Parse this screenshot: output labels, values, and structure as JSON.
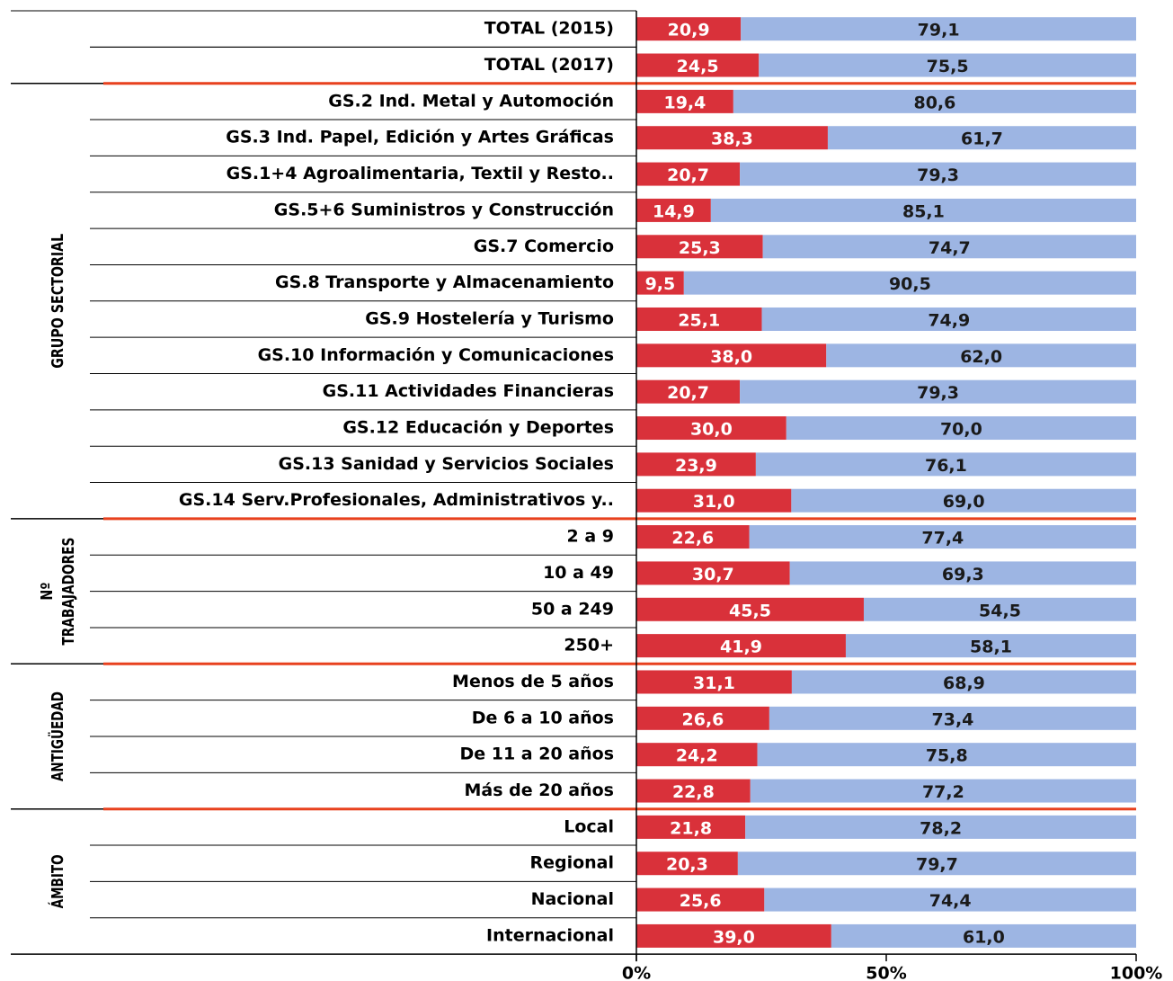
{
  "chart_data": {
    "type": "stacked-bar-horizontal",
    "groups": [
      {
        "categories": [
          "TOTAL (2015)",
          "TOTAL (2017)"
        ]
      },
      {
        "label": [
          "GRUPO SECTORIAL"
        ],
        "categories": [
          "GS.2 Ind. Metal y Automoción",
          "GS.3 Ind. Papel, Edición y Artes Gráficas",
          "GS.1+4 Agroalimentaria, Textil y Resto..",
          "GS.5+6 Suministros y Construcción",
          "GS.7 Comercio",
          "GS.8 Transporte y Almacenamiento",
          "GS.9 Hostelería y Turismo",
          "GS.10 Información y Comunicaciones",
          "GS.11 Actividades Financieras",
          "GS.12 Educación y Deportes",
          "GS.13 Sanidad y Servicios Sociales",
          "GS.14 Serv.Profesionales, Administrativos y.."
        ]
      },
      {
        "label": [
          "Nº",
          "TRABAJADORES"
        ],
        "categories": [
          "2 a 9",
          "10 a 49",
          "50 a 249",
          "250+"
        ]
      },
      {
        "label": [
          "ANTIGÜEDAD"
        ],
        "categories": [
          "Menos de 5 años",
          "De 6 a 10 años",
          "De 11 a 20 años",
          "Más de 20 años"
        ]
      },
      {
        "label": [
          "ÁMBITO"
        ],
        "categories": [
          "Local",
          "Regional",
          "Nacional",
          "Internacional"
        ]
      }
    ],
    "series": [
      {
        "color": "#d9313a",
        "values": [
          20.9,
          24.5,
          19.4,
          38.3,
          20.7,
          14.9,
          25.3,
          9.5,
          25.1,
          38.0,
          20.7,
          30.0,
          23.9,
          31.0,
          22.6,
          30.7,
          45.5,
          41.9,
          31.1,
          26.6,
          24.2,
          22.8,
          21.8,
          20.3,
          25.6,
          39.0
        ],
        "value_labels": [
          "20,9",
          "24,5",
          "19,4",
          "38,3",
          "20,7",
          "14,9",
          "25,3",
          "9,5",
          "25,1",
          "38,0",
          "20,7",
          "30,0",
          "23,9",
          "31,0",
          "22,6",
          "30,7",
          "45,5",
          "41,9",
          "31,1",
          "26,6",
          "24,2",
          "22,8",
          "21,8",
          "20,3",
          "25,6",
          "39,0"
        ]
      },
      {
        "color": "#9db5e3",
        "values": [
          79.1,
          75.5,
          80.6,
          61.7,
          79.3,
          85.1,
          74.7,
          90.5,
          74.9,
          62.0,
          79.3,
          70.0,
          76.1,
          69.0,
          77.4,
          69.3,
          54.5,
          58.1,
          68.9,
          73.4,
          75.8,
          77.2,
          78.2,
          79.7,
          74.4,
          61.0
        ],
        "value_labels": [
          "79,1",
          "75,5",
          "80,6",
          "61,7",
          "79,3",
          "85,1",
          "74,7",
          "90,5",
          "74,9",
          "62,0",
          "79,3",
          "70,0",
          "76,1",
          "69,0",
          "77,4",
          "69,3",
          "54,5",
          "58,1",
          "68,9",
          "73,4",
          "75,8",
          "77,2",
          "78,2",
          "79,7",
          "74,4",
          "61,0"
        ]
      }
    ],
    "xlim": [
      0,
      100
    ],
    "xticks": [
      {
        "value": 0,
        "label": "0%"
      },
      {
        "value": 50,
        "label": "50%"
      },
      {
        "value": 100,
        "label": "100%"
      }
    ]
  }
}
